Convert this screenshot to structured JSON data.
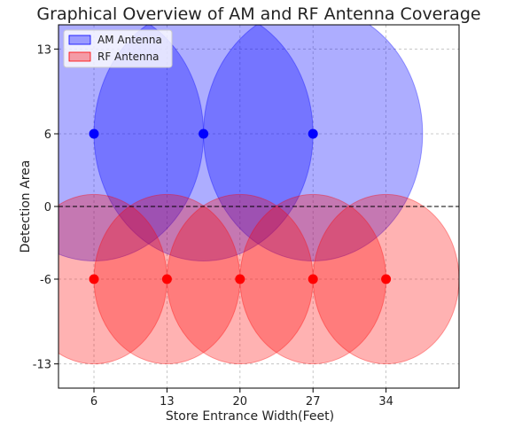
{
  "chart_data": {
    "type": "scatter",
    "title": "Graphical Overview of AM and RF Antenna Coverage",
    "xlabel": "Store Entrance Width(Feet)",
    "ylabel": "Detection Area",
    "xlim": [
      2.6,
      41
    ],
    "ylim": [
      -15,
      15
    ],
    "xticks": [
      6,
      13,
      20,
      27,
      34
    ],
    "yticks": [
      -13,
      -6,
      0,
      6,
      13
    ],
    "xtick_labels": [
      "6",
      "13",
      "20",
      "27",
      "34"
    ],
    "ytick_labels": [
      "-13",
      "-6",
      "0",
      "6",
      "13"
    ],
    "grid": true,
    "legend_position": "top-left",
    "reference_line": {
      "y": 0,
      "style": "dashed"
    },
    "series": [
      {
        "name": "AM Antenna",
        "color": "#0000ff",
        "x": [
          6,
          16.5,
          27
        ],
        "y": [
          6,
          6,
          6
        ],
        "coverage_radius": [
          10.5,
          10.5,
          10.5
        ]
      },
      {
        "name": "RF Antenna",
        "color": "#ff0000",
        "x": [
          6,
          13,
          20,
          27,
          34
        ],
        "y": [
          -6,
          -6,
          -6,
          -6,
          -6
        ],
        "coverage_radius": [
          7,
          7,
          7,
          7,
          7
        ]
      }
    ]
  }
}
